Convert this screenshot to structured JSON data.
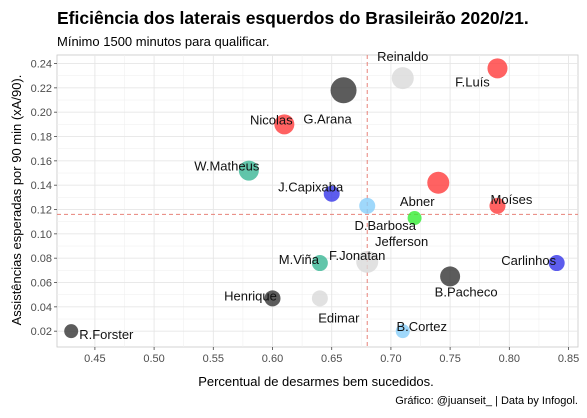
{
  "title": "Eficiência dos laterais esquerdos do Brasileirão 2020/21.",
  "subtitle": "Mínimo 1500 minutos para qualificar.",
  "caption": "Gráfico: @juanseit_ | Data by Infogol.",
  "chart_data": {
    "type": "scatter",
    "xlabel": "Percentual de desarmes bem sucedidos.",
    "ylabel": "Assistências esperadas por 90 min (xA/90).",
    "xlim": [
      0.418,
      0.858
    ],
    "ylim": [
      0.007,
      0.247
    ],
    "x_ticks": [
      "0.45",
      "0.50",
      "0.55",
      "0.60",
      "0.65",
      "0.70",
      "0.75",
      "0.80",
      "0.85"
    ],
    "y_ticks": [
      "0.02",
      "0.04",
      "0.06",
      "0.08",
      "0.10",
      "0.12",
      "0.14",
      "0.16",
      "0.18",
      "0.20",
      "0.22",
      "0.24"
    ],
    "grid": true,
    "reference_lines": {
      "x": 0.68,
      "y": 0.116,
      "color": "#e8837a",
      "style": "dashed"
    },
    "points": [
      {
        "label": "Reinaldo",
        "x": 0.71,
        "y": 0.228,
        "size": 11,
        "color": "#d9d9d9"
      },
      {
        "label": "F.Luís",
        "x": 0.79,
        "y": 0.236,
        "size": 10,
        "color": "#ff3b3b"
      },
      {
        "label": "G.Arana",
        "x": 0.66,
        "y": 0.218,
        "size": 13,
        "color": "#333333"
      },
      {
        "label": "Nicolas",
        "x": 0.61,
        "y": 0.19,
        "size": 10,
        "color": "#ff3b3b"
      },
      {
        "label": "W.Matheus",
        "x": 0.58,
        "y": 0.152,
        "size": 10,
        "color": "#3ab795"
      },
      {
        "label": "J.Capixaba",
        "x": 0.65,
        "y": 0.133,
        "size": 8,
        "color": "#3535e8"
      },
      {
        "label": "Abner",
        "x": 0.74,
        "y": 0.142,
        "size": 11,
        "color": "#ff3b3b"
      },
      {
        "label": "Moíses",
        "x": 0.79,
        "y": 0.123,
        "size": 8,
        "color": "#ff3b3b"
      },
      {
        "label": "D.Barbosa",
        "x": 0.68,
        "y": 0.123,
        "size": 8,
        "color": "#87cefa"
      },
      {
        "label": "Jefferson",
        "x": 0.72,
        "y": 0.113,
        "size": 7,
        "color": "#33ee33"
      },
      {
        "label": "Carlinhos",
        "x": 0.84,
        "y": 0.076,
        "size": 8,
        "color": "#3535e8"
      },
      {
        "label": "M.Viña",
        "x": 0.64,
        "y": 0.076,
        "size": 8,
        "color": "#3ab795"
      },
      {
        "label": "F.Jonatan",
        "x": 0.68,
        "y": 0.077,
        "size": 11,
        "color": "#d9d9d9"
      },
      {
        "label": "B.Pacheco",
        "x": 0.75,
        "y": 0.065,
        "size": 10,
        "color": "#333333"
      },
      {
        "label": "Henrique",
        "x": 0.6,
        "y": 0.047,
        "size": 8,
        "color": "#333333"
      },
      {
        "label": "Edimar",
        "x": 0.64,
        "y": 0.047,
        "size": 8,
        "color": "#d9d9d9"
      },
      {
        "label": "B.Cortez",
        "x": 0.71,
        "y": 0.02,
        "size": 7,
        "color": "#87cefa"
      },
      {
        "label": "R.Forster",
        "x": 0.43,
        "y": 0.02,
        "size": 7,
        "color": "#333333"
      }
    ]
  }
}
